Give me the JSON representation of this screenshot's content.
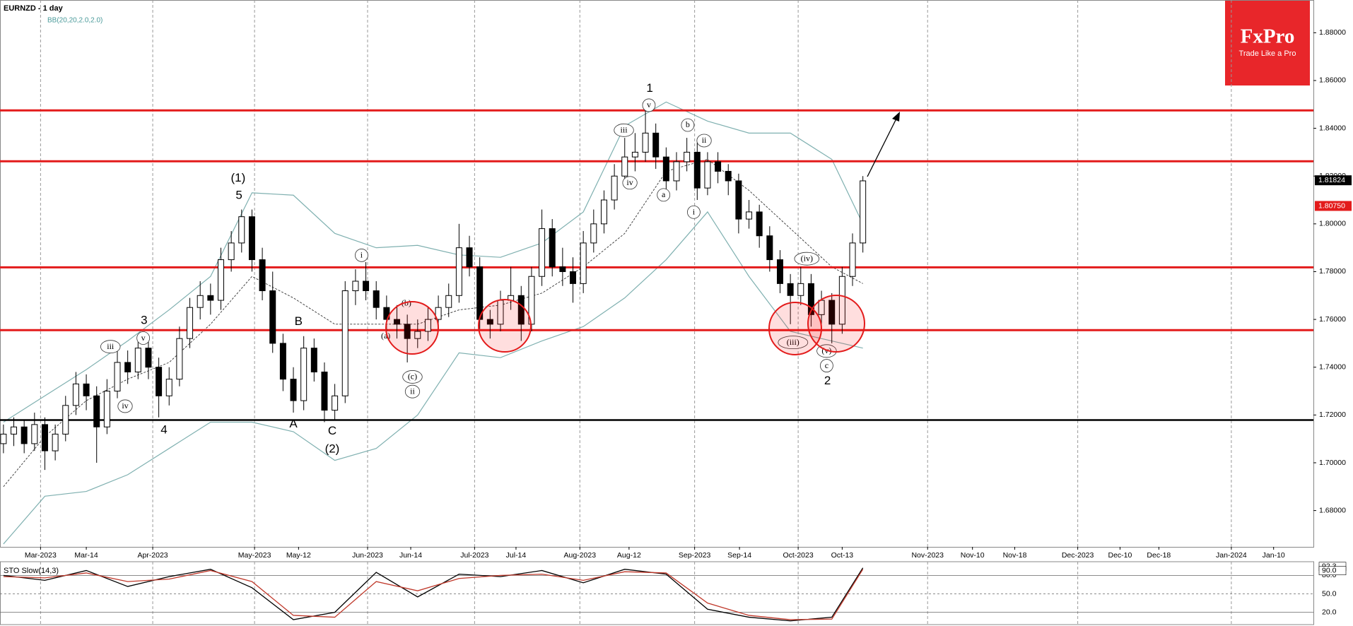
{
  "chart_data": [
    {
      "type": "candlestick",
      "title": "EURNZD - 1 day",
      "indicator_label": "BB(20,20,2.0,2.0)",
      "ylim": [
        1.6648,
        1.8937
      ],
      "yticks": [
        {
          "value": 1.68,
          "label": "1.68000"
        },
        {
          "value": 1.7,
          "label": "1.70000"
        },
        {
          "value": 1.72,
          "label": "1.72000"
        },
        {
          "value": 1.74,
          "label": "1.74000"
        },
        {
          "value": 1.76,
          "label": "1.76000"
        },
        {
          "value": 1.78,
          "label": "1.78000"
        },
        {
          "value": 1.8,
          "label": "1.80000"
        },
        {
          "value": 1.82,
          "label": "1.82000"
        },
        {
          "value": 1.84,
          "label": "1.84000"
        },
        {
          "value": 1.86,
          "label": "1.86000"
        },
        {
          "value": 1.88,
          "label": "1.88000"
        }
      ],
      "categories": [
        "Mar-2023",
        "Mar-14",
        "Apr-2023",
        "May-2023",
        "May-12",
        "Jun-2023",
        "Jun-14",
        "Jul-2023",
        "Jul-14",
        "Aug-2023",
        "Aug-12",
        "Sep-2023",
        "Sep-14",
        "Oct-2023",
        "Oct-13",
        "Nov-2023",
        "Nov-10",
        "Nov-18",
        "Dec-2023",
        "Dec-10",
        "Dec-18",
        "Jan-2024",
        "Jan-10"
      ],
      "candles": [
        [
          1.708,
          1.716,
          1.704,
          1.712
        ],
        [
          1.712,
          1.719,
          1.707,
          1.715
        ],
        [
          1.715,
          1.718,
          1.704,
          1.708
        ],
        [
          1.708,
          1.721,
          1.705,
          1.716
        ],
        [
          1.716,
          1.719,
          1.697,
          1.705
        ],
        [
          1.705,
          1.716,
          1.701,
          1.712
        ],
        [
          1.712,
          1.728,
          1.709,
          1.724
        ],
        [
          1.724,
          1.738,
          1.72,
          1.733
        ],
        [
          1.733,
          1.737,
          1.722,
          1.728
        ],
        [
          1.728,
          1.732,
          1.7,
          1.715
        ],
        [
          1.715,
          1.735,
          1.712,
          1.73
        ],
        [
          1.73,
          1.748,
          1.727,
          1.742
        ],
        [
          1.742,
          1.747,
          1.733,
          1.738
        ],
        [
          1.738,
          1.753,
          1.735,
          1.748
        ],
        [
          1.748,
          1.752,
          1.735,
          1.74
        ],
        [
          1.74,
          1.744,
          1.719,
          1.728
        ],
        [
          1.728,
          1.74,
          1.724,
          1.735
        ],
        [
          1.735,
          1.757,
          1.732,
          1.752
        ],
        [
          1.752,
          1.769,
          1.748,
          1.765
        ],
        [
          1.765,
          1.776,
          1.76,
          1.77
        ],
        [
          1.77,
          1.775,
          1.762,
          1.768
        ],
        [
          1.768,
          1.79,
          1.764,
          1.785
        ],
        [
          1.785,
          1.797,
          1.78,
          1.792
        ],
        [
          1.792,
          1.806,
          1.788,
          1.803
        ],
        [
          1.803,
          1.806,
          1.78,
          1.785
        ],
        [
          1.785,
          1.79,
          1.768,
          1.772
        ],
        [
          1.772,
          1.78,
          1.746,
          1.75
        ],
        [
          1.75,
          1.754,
          1.73,
          1.735
        ],
        [
          1.735,
          1.74,
          1.721,
          1.726
        ],
        [
          1.726,
          1.753,
          1.722,
          1.748
        ],
        [
          1.748,
          1.752,
          1.734,
          1.738
        ],
        [
          1.738,
          1.742,
          1.717,
          1.722
        ],
        [
          1.722,
          1.733,
          1.718,
          1.728
        ],
        [
          1.728,
          1.776,
          1.725,
          1.772
        ],
        [
          1.772,
          1.781,
          1.766,
          1.776
        ],
        [
          1.776,
          1.784,
          1.768,
          1.772
        ],
        [
          1.772,
          1.776,
          1.76,
          1.765
        ],
        [
          1.765,
          1.77,
          1.755,
          1.76
        ],
        [
          1.76,
          1.766,
          1.752,
          1.758
        ],
        [
          1.758,
          1.762,
          1.742,
          1.752
        ],
        [
          1.752,
          1.76,
          1.748,
          1.755
        ],
        [
          1.755,
          1.765,
          1.751,
          1.76
        ],
        [
          1.76,
          1.77,
          1.756,
          1.765
        ],
        [
          1.765,
          1.775,
          1.761,
          1.77
        ],
        [
          1.77,
          1.8,
          1.767,
          1.79
        ],
        [
          1.79,
          1.795,
          1.778,
          1.782
        ],
        [
          1.782,
          1.786,
          1.756,
          1.76
        ],
        [
          1.76,
          1.764,
          1.752,
          1.758
        ],
        [
          1.758,
          1.772,
          1.755,
          1.768
        ],
        [
          1.768,
          1.782,
          1.764,
          1.77
        ],
        [
          1.77,
          1.774,
          1.751,
          1.758
        ],
        [
          1.758,
          1.782,
          1.755,
          1.778
        ],
        [
          1.778,
          1.806,
          1.774,
          1.798
        ],
        [
          1.798,
          1.802,
          1.778,
          1.782
        ],
        [
          1.782,
          1.79,
          1.774,
          1.78
        ],
        [
          1.78,
          1.786,
          1.767,
          1.775
        ],
        [
          1.775,
          1.797,
          1.771,
          1.792
        ],
        [
          1.792,
          1.806,
          1.788,
          1.8
        ],
        [
          1.8,
          1.814,
          1.796,
          1.81
        ],
        [
          1.81,
          1.825,
          1.806,
          1.82
        ],
        [
          1.82,
          1.836,
          1.816,
          1.828
        ],
        [
          1.828,
          1.838,
          1.822,
          1.83
        ],
        [
          1.83,
          1.849,
          1.826,
          1.838
        ],
        [
          1.838,
          1.842,
          1.823,
          1.828
        ],
        [
          1.828,
          1.832,
          1.813,
          1.818
        ],
        [
          1.818,
          1.83,
          1.814,
          1.826
        ],
        [
          1.826,
          1.836,
          1.822,
          1.83
        ],
        [
          1.83,
          1.834,
          1.81,
          1.815
        ],
        [
          1.815,
          1.83,
          1.812,
          1.826
        ],
        [
          1.826,
          1.83,
          1.817,
          1.822
        ],
        [
          1.822,
          1.825,
          1.812,
          1.818
        ],
        [
          1.818,
          1.821,
          1.796,
          1.802
        ],
        [
          1.802,
          1.81,
          1.798,
          1.805
        ],
        [
          1.805,
          1.808,
          1.79,
          1.795
        ],
        [
          1.795,
          1.799,
          1.78,
          1.785
        ],
        [
          1.785,
          1.789,
          1.771,
          1.775
        ],
        [
          1.775,
          1.779,
          1.758,
          1.77
        ],
        [
          1.77,
          1.782,
          1.766,
          1.775
        ],
        [
          1.775,
          1.779,
          1.757,
          1.762
        ],
        [
          1.762,
          1.772,
          1.758,
          1.768
        ],
        [
          1.768,
          1.771,
          1.75,
          1.758
        ],
        [
          1.758,
          1.782,
          1.754,
          1.778
        ],
        [
          1.778,
          1.796,
          1.774,
          1.792
        ],
        [
          1.792,
          1.82,
          1.788,
          1.818
        ]
      ],
      "bands": {
        "color": "#7fb0b0",
        "x": [
          0,
          4,
          8,
          12,
          16,
          20,
          24,
          28,
          32,
          36,
          40,
          44,
          48,
          52,
          56,
          60,
          64,
          68,
          72,
          76,
          80,
          83
        ],
        "upper": [
          1.717,
          1.728,
          1.739,
          1.751,
          1.764,
          1.778,
          1.813,
          1.812,
          1.796,
          1.79,
          1.791,
          1.787,
          1.786,
          1.792,
          1.805,
          1.841,
          1.851,
          1.843,
          1.838,
          1.838,
          1.827,
          1.8
        ],
        "middle": [
          1.69,
          1.711,
          1.726,
          1.735,
          1.742,
          1.758,
          1.778,
          1.769,
          1.758,
          1.758,
          1.758,
          1.764,
          1.766,
          1.771,
          1.782,
          1.796,
          1.822,
          1.827,
          1.814,
          1.798,
          1.782,
          1.775
        ],
        "lower": [
          1.666,
          1.686,
          1.688,
          1.695,
          1.706,
          1.717,
          1.717,
          1.713,
          1.701,
          1.706,
          1.72,
          1.746,
          1.744,
          1.751,
          1.757,
          1.769,
          1.785,
          1.805,
          1.778,
          1.755,
          1.751,
          1.748
        ]
      },
      "levels": [
        {
          "value": 1.8475,
          "color": "#e31b1b"
        },
        {
          "value": 1.8262,
          "color": "#e31b1b"
        },
        {
          "value": 1.7818,
          "color": "#e31b1b"
        },
        {
          "value": 1.7555,
          "color": "#e31b1b"
        },
        {
          "value": 1.7179,
          "color": "#000000"
        }
      ],
      "price_markers": [
        {
          "value": 1.81824,
          "color": "#000000"
        },
        {
          "value": {
            "value": 1.8075,
            "label": "1.80750"
          },
          "color": "#e31b1b"
        }
      ],
      "annotations": [
        "iii",
        "iv",
        "v",
        "3",
        "(1)",
        "5",
        "4",
        "A",
        "B",
        "C",
        "(2)",
        "i",
        "(a)",
        "(b)",
        "(c)",
        "ii",
        "iii",
        "iv",
        "v",
        "1",
        "a",
        "b",
        "ii",
        "i",
        "(iv)",
        "(iii)",
        "(v)",
        "c",
        "2"
      ]
    },
    {
      "type": "line",
      "title": "STO Slow(14,3)",
      "x": [
        0,
        4,
        8,
        12,
        16,
        20,
        24,
        28,
        32,
        36,
        40,
        44,
        48,
        52,
        56,
        60,
        64,
        68,
        72,
        76,
        80,
        83
      ],
      "series": [
        {
          "color": "#000000",
          "values": [
            80,
            72,
            88,
            62,
            78,
            90,
            60,
            8,
            20,
            85,
            45,
            82,
            78,
            88,
            68,
            90,
            82,
            25,
            12,
            6,
            12,
            92.3
          ]
        },
        {
          "color": "#c0392b",
          "values": [
            78,
            76,
            84,
            70,
            74,
            88,
            70,
            15,
            12,
            70,
            55,
            75,
            80,
            82,
            72,
            86,
            84,
            35,
            15,
            8,
            9,
            90
          ]
        }
      ],
      "ylim": [
        0,
        100
      ],
      "yticks": [
        {
          "value": 20,
          "label": "20.0"
        },
        {
          "value": 50,
          "label": "50.0"
        },
        {
          "value": 80,
          "label": "80.0"
        }
      ],
      "current_labels": [
        92.3,
        {
          "value": 90,
          "label": "90.0"
        }
      ]
    }
  ],
  "logo": {
    "brand": "FxPro",
    "tagline": "Trade Like a Pro"
  }
}
